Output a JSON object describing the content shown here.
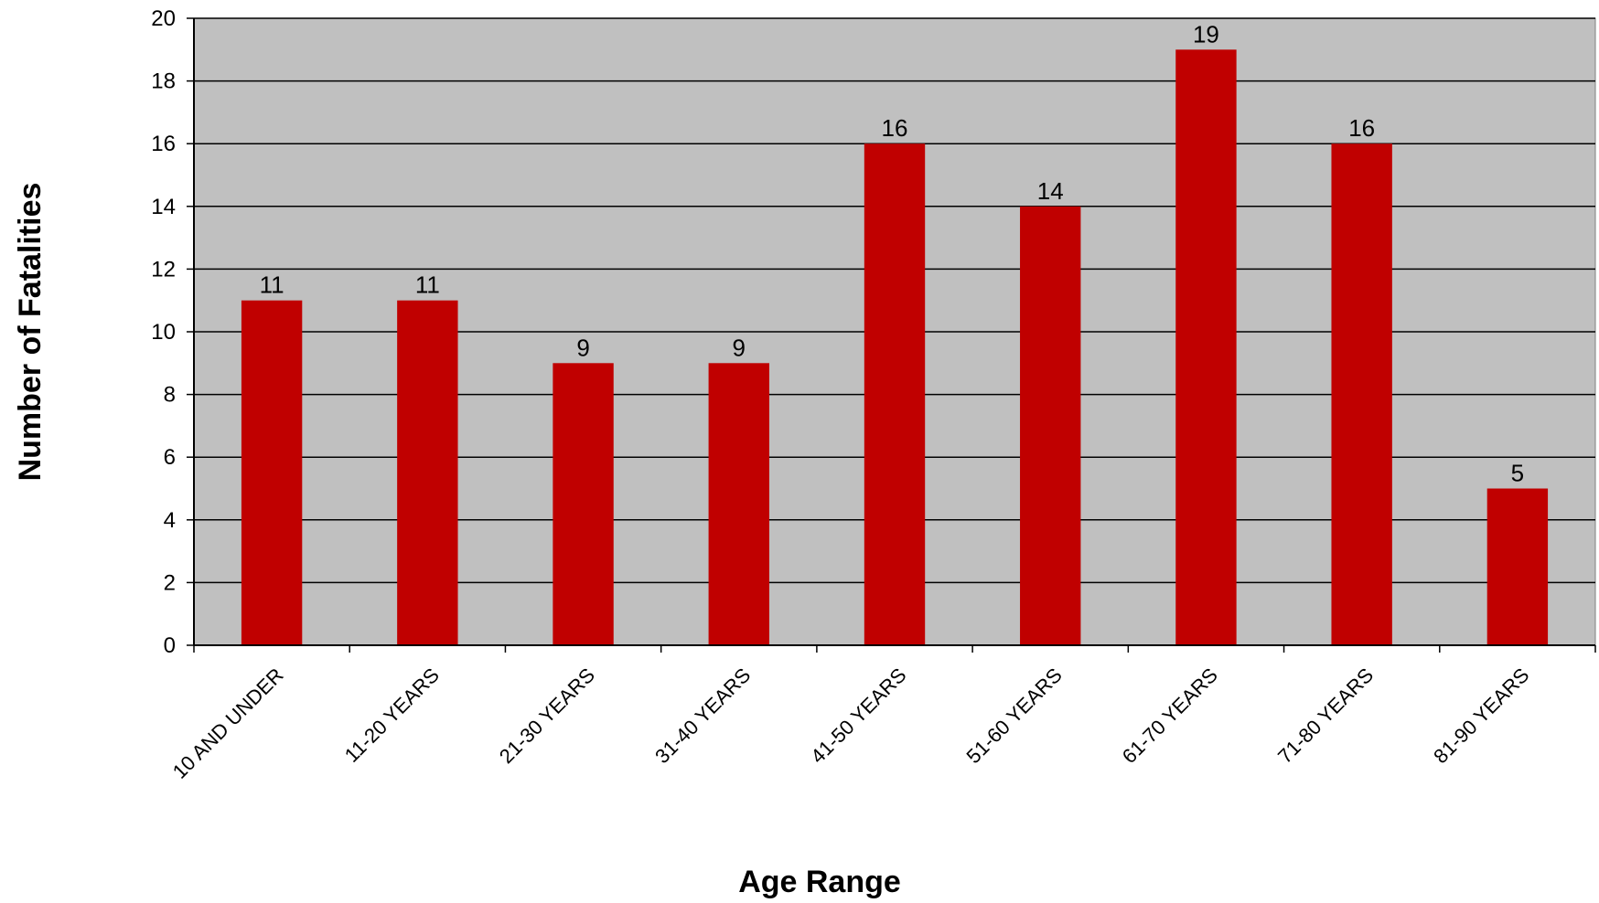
{
  "chart_data": {
    "type": "bar",
    "title": "",
    "xlabel": "Age Range",
    "ylabel": "Number of Fatalities",
    "categories": [
      "10 AND UNDER",
      "11-20 YEARS",
      "21-30 YEARS",
      "31-40 YEARS",
      "41-50 YEARS",
      "51-60 YEARS",
      "61-70 YEARS",
      "71-80 YEARS",
      "81-90 YEARS"
    ],
    "values": [
      11,
      11,
      9,
      9,
      16,
      14,
      19,
      16,
      5
    ],
    "ylim": [
      0,
      20
    ],
    "yticks": [
      0,
      2,
      4,
      6,
      8,
      10,
      12,
      14,
      16,
      18,
      20
    ],
    "grid": true,
    "legend": "none",
    "colors": {
      "bar": "#c00000",
      "plot_background": "#c0c0c0",
      "gridline": "#000000"
    }
  }
}
